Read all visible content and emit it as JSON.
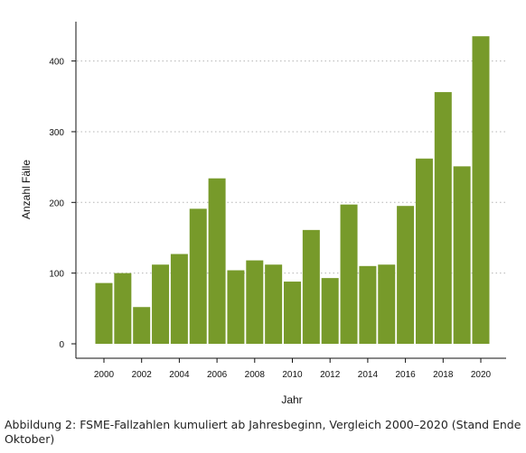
{
  "chart_data": {
    "type": "bar",
    "title": "",
    "xlabel": "Jahr",
    "ylabel": "Anzahl Fälle",
    "categories": [
      "2000",
      "2001",
      "2002",
      "2003",
      "2004",
      "2005",
      "2006",
      "2007",
      "2008",
      "2009",
      "2010",
      "2011",
      "2012",
      "2013",
      "2014",
      "2015",
      "2016",
      "2017",
      "2018",
      "2019",
      "2020"
    ],
    "values": [
      86,
      100,
      52,
      112,
      127,
      191,
      234,
      104,
      118,
      112,
      88,
      161,
      93,
      197,
      110,
      112,
      195,
      262,
      356,
      251,
      435
    ],
    "x_tick_labels": [
      "2000",
      "2002",
      "2004",
      "2006",
      "2008",
      "2010",
      "2012",
      "2014",
      "2016",
      "2018",
      "2020"
    ],
    "y_ticks": [
      0,
      100,
      200,
      300,
      400
    ],
    "ylim": [
      0,
      460
    ],
    "grid": "horizontal-dotted",
    "bar_color": "#779a2a"
  },
  "caption": "Abbildung 2: FSME-Fallzahlen kumuliert ab Jahresbeginn, Vergleich 2000–2020 (Stand Ende Oktober)"
}
